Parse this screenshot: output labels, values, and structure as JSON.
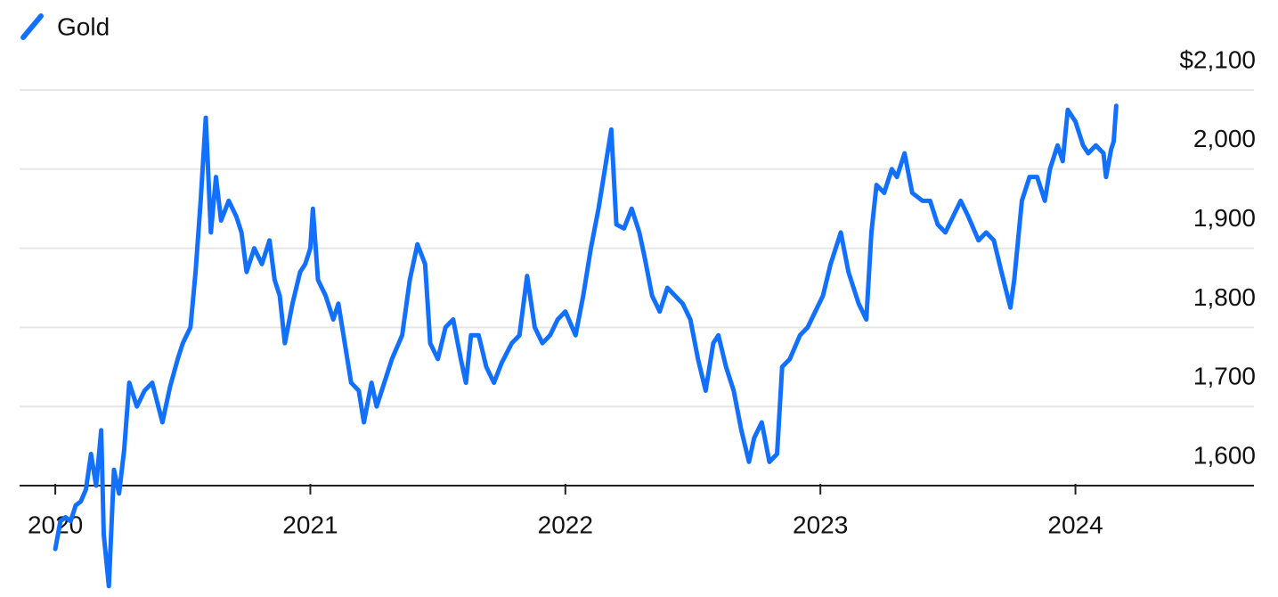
{
  "chart_data": {
    "type": "line",
    "legend_position": "top-left",
    "grid": true,
    "xlim": [
      2019.86,
      2024.7
    ],
    "xticks": [
      2020,
      2021,
      2022,
      2023,
      2024
    ],
    "ylim": [
      1600,
      2100
    ],
    "yticks": [
      {
        "value": 1600,
        "label": "1,600"
      },
      {
        "value": 1700,
        "label": "1,700"
      },
      {
        "value": 1800,
        "label": "1,800"
      },
      {
        "value": 1900,
        "label": "1,900"
      },
      {
        "value": 2000,
        "label": "2,000"
      },
      {
        "value": 2100,
        "label": "$2,100"
      }
    ],
    "x": [
      2020.0,
      2020.02,
      2020.04,
      2020.06,
      2020.08,
      2020.1,
      2020.12,
      2020.14,
      2020.16,
      2020.18,
      2020.19,
      2020.21,
      2020.23,
      2020.25,
      2020.27,
      2020.29,
      2020.32,
      2020.35,
      2020.38,
      2020.42,
      2020.45,
      2020.48,
      2020.5,
      2020.53,
      2020.55,
      2020.57,
      2020.59,
      2020.61,
      2020.63,
      2020.65,
      2020.68,
      2020.71,
      2020.73,
      2020.75,
      2020.78,
      2020.81,
      2020.84,
      2020.86,
      2020.88,
      2020.9,
      2020.93,
      2020.96,
      2020.98,
      2021.0,
      2021.01,
      2021.03,
      2021.06,
      2021.09,
      2021.11,
      2021.13,
      2021.16,
      2021.19,
      2021.21,
      2021.24,
      2021.26,
      2021.28,
      2021.32,
      2021.36,
      2021.39,
      2021.42,
      2021.45,
      2021.47,
      2021.5,
      2021.53,
      2021.56,
      2021.59,
      2021.61,
      2021.63,
      2021.66,
      2021.69,
      2021.72,
      2021.75,
      2021.79,
      2021.82,
      2021.85,
      2021.88,
      2021.91,
      2021.94,
      2021.97,
      2022.0,
      2022.04,
      2022.07,
      2022.1,
      2022.13,
      2022.18,
      2022.2,
      2022.23,
      2022.26,
      2022.29,
      2022.31,
      2022.34,
      2022.37,
      2022.4,
      2022.43,
      2022.46,
      2022.49,
      2022.52,
      2022.55,
      2022.58,
      2022.6,
      2022.63,
      2022.66,
      2022.69,
      2022.72,
      2022.74,
      2022.77,
      2022.8,
      2022.83,
      2022.85,
      2022.88,
      2022.92,
      2022.95,
      2022.98,
      2023.01,
      2023.04,
      2023.08,
      2023.11,
      2023.15,
      2023.18,
      2023.2,
      2023.22,
      2023.25,
      2023.28,
      2023.3,
      2023.33,
      2023.36,
      2023.4,
      2023.43,
      2023.46,
      2023.49,
      2023.52,
      2023.55,
      2023.58,
      2023.62,
      2023.65,
      2023.68,
      2023.71,
      2023.745,
      2023.76,
      2023.79,
      2023.82,
      2023.85,
      2023.88,
      2023.9,
      2023.93,
      2023.95,
      2023.97,
      2024.0,
      2024.03,
      2024.05,
      2024.08,
      2024.11,
      2024.12,
      2024.14,
      2024.15,
      2024.16
    ],
    "series": [
      {
        "name": "Gold",
        "color": "#1170ff",
        "values": [
          1520,
          1555,
          1560,
          1555,
          1575,
          1580,
          1595,
          1640,
          1600,
          1670,
          1538,
          1473,
          1620,
          1590,
          1645,
          1730,
          1700,
          1720,
          1730,
          1680,
          1725,
          1760,
          1780,
          1800,
          1870,
          1960,
          2065,
          1920,
          1990,
          1935,
          1960,
          1940,
          1920,
          1870,
          1900,
          1880,
          1910,
          1860,
          1840,
          1780,
          1830,
          1870,
          1880,
          1900,
          1950,
          1860,
          1840,
          1810,
          1830,
          1790,
          1730,
          1720,
          1680,
          1730,
          1700,
          1720,
          1760,
          1790,
          1860,
          1905,
          1880,
          1780,
          1760,
          1800,
          1810,
          1760,
          1730,
          1790,
          1790,
          1750,
          1730,
          1755,
          1780,
          1790,
          1865,
          1800,
          1780,
          1790,
          1810,
          1820,
          1790,
          1840,
          1900,
          1950,
          2050,
          1930,
          1925,
          1950,
          1920,
          1890,
          1840,
          1820,
          1850,
          1840,
          1830,
          1810,
          1760,
          1720,
          1780,
          1790,
          1750,
          1720,
          1670,
          1630,
          1660,
          1680,
          1630,
          1640,
          1750,
          1760,
          1790,
          1800,
          1820,
          1840,
          1880,
          1920,
          1870,
          1830,
          1810,
          1920,
          1980,
          1970,
          2000,
          1990,
          2020,
          1970,
          1960,
          1960,
          1930,
          1920,
          1940,
          1960,
          1940,
          1910,
          1920,
          1910,
          1870,
          1825,
          1860,
          1960,
          1990,
          1990,
          1960,
          2000,
          2030,
          2010,
          2075,
          2060,
          2030,
          2020,
          2030,
          2020,
          1990,
          2025,
          2035,
          2080
        ]
      }
    ]
  }
}
